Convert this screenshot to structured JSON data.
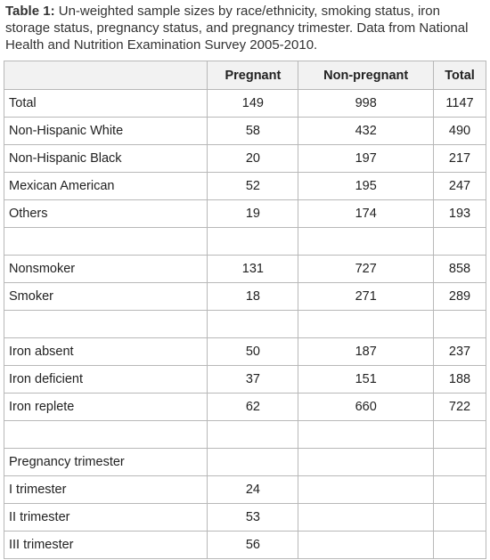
{
  "caption": {
    "label": "Table 1:",
    "text": "Un-weighted sample sizes by race/ethnicity, smoking status, iron storage status, pregnancy status, and pregnancy trimester. Data from National Health and Nutrition Examination Survey 2005-2010."
  },
  "table": {
    "header": [
      "Pregnant",
      "Non-pregnant",
      "Total"
    ],
    "rows": [
      [
        "Total",
        149,
        998,
        1147
      ],
      [
        "Non-Hispanic White",
        58,
        432,
        490
      ],
      [
        "Non-Hispanic Black",
        20,
        197,
        217
      ],
      [
        "Mexican American",
        52,
        195,
        247
      ],
      [
        "Others",
        19,
        174,
        193
      ],
      [],
      [
        "Nonsmoker",
        131,
        727,
        858
      ],
      [
        "Smoker",
        18,
        271,
        289
      ],
      [],
      [
        "Iron absent",
        50,
        187,
        237
      ],
      [
        "Iron deficient",
        37,
        151,
        188
      ],
      [
        "Iron replete",
        62,
        660,
        722
      ],
      [],
      [
        "Pregnancy trimester"
      ],
      [
        "I trimester",
        24
      ],
      [
        "II trimester",
        53
      ],
      [
        "III trimester",
        56
      ]
    ]
  }
}
